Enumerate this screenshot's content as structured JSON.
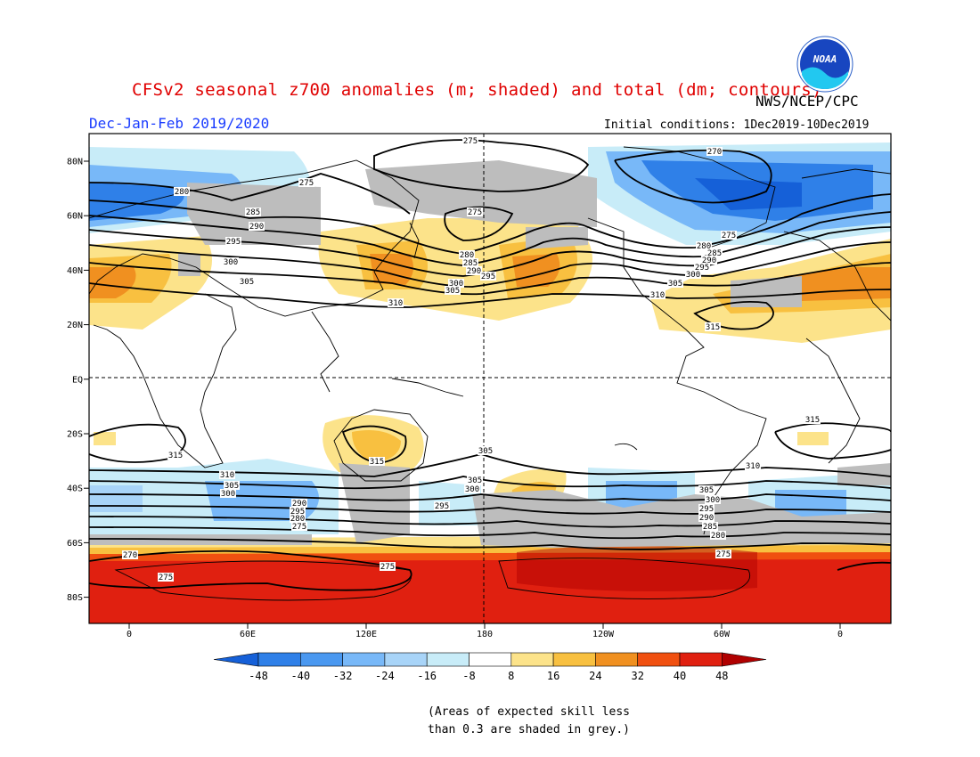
{
  "header": {
    "title": "CFSv2 seasonal z700 anomalies (m; shaded) and total (dm; contours)",
    "agency": "NWS/NCEP/CPC",
    "season": "Dec-Jan-Feb 2019/2020",
    "initial_conditions": "Initial conditions: 1Dec2019-10Dec2019",
    "logo_text": "NOAA"
  },
  "axes": {
    "lat_labels": [
      "80N",
      "60N",
      "40N",
      "20N",
      "EQ",
      "20S",
      "40S",
      "60S",
      "80S"
    ],
    "lon_labels": [
      "0",
      "60E",
      "120E",
      "180",
      "120W",
      "60W",
      "0"
    ]
  },
  "colorbar": {
    "ticks": [
      "-48",
      "-40",
      "-32",
      "-24",
      "-16",
      "-8",
      "8",
      "16",
      "24",
      "32",
      "40",
      "48"
    ],
    "colors": [
      "#1560d8",
      "#2f80e8",
      "#4a98f0",
      "#78b8f8",
      "#a8d4f8",
      "#c8ecf8",
      "#ffffff",
      "#fce38a",
      "#f8c040",
      "#f09020",
      "#f05010",
      "#e02010",
      "#b00000"
    ]
  },
  "contour_labels": [
    "275",
    "270",
    "280",
    "285",
    "290",
    "295",
    "300",
    "305",
    "310",
    "315"
  ],
  "footnote": {
    "line1": "(Areas of expected skill less",
    "line2": "than 0.3 are shaded in grey.)"
  },
  "colors": {
    "title": "#e00000",
    "season": "#1a3cff",
    "skill_grey": "#bdbdbd"
  }
}
